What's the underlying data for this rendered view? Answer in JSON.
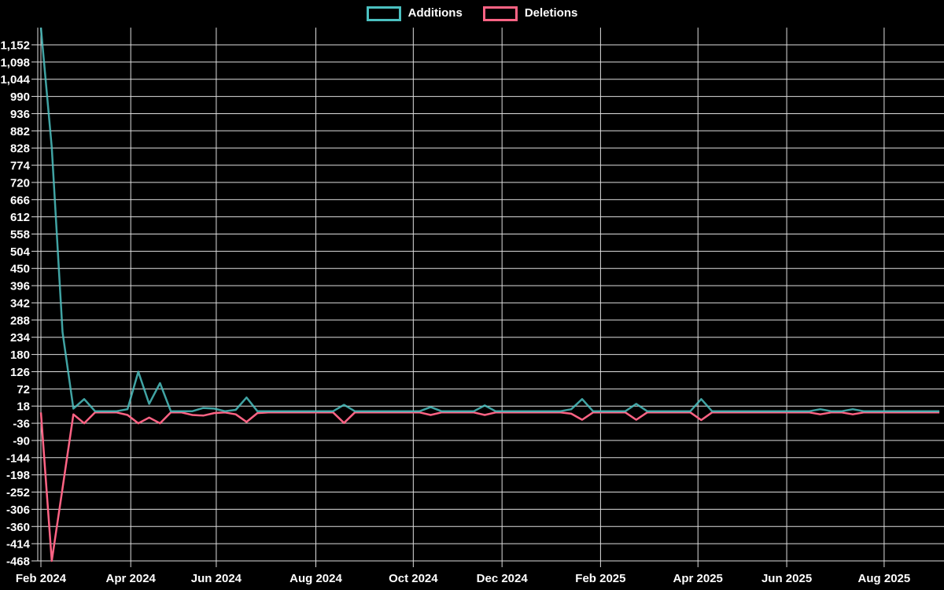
{
  "legend": {
    "items": [
      {
        "label": "Additions",
        "color": "#4bc0c0"
      },
      {
        "label": "Deletions",
        "color": "#ff6384"
      }
    ]
  },
  "chart_data": {
    "type": "line",
    "title": "",
    "xlabel": "",
    "ylabel": "",
    "background": "#000000",
    "grid": true,
    "grid_color": "#dedede",
    "text_color": "#ffffff",
    "legend_position": "top-center",
    "ylim": [
      -468,
      1206
    ],
    "y_tick_step": 54,
    "y_ticks": [
      {
        "value": 1152,
        "label": "1,152"
      },
      {
        "value": 1098,
        "label": "1,098"
      },
      {
        "value": 1044,
        "label": "1,044"
      },
      {
        "value": 990,
        "label": "990"
      },
      {
        "value": 936,
        "label": "936"
      },
      {
        "value": 882,
        "label": "882"
      },
      {
        "value": 828,
        "label": "828"
      },
      {
        "value": 774,
        "label": "774"
      },
      {
        "value": 720,
        "label": "720"
      },
      {
        "value": 666,
        "label": "666"
      },
      {
        "value": 612,
        "label": "612"
      },
      {
        "value": 558,
        "label": "558"
      },
      {
        "value": 504,
        "label": "504"
      },
      {
        "value": 450,
        "label": "450"
      },
      {
        "value": 396,
        "label": "396"
      },
      {
        "value": 342,
        "label": "342"
      },
      {
        "value": 288,
        "label": "288"
      },
      {
        "value": 234,
        "label": "234"
      },
      {
        "value": 180,
        "label": "180"
      },
      {
        "value": 126,
        "label": "126"
      },
      {
        "value": 72,
        "label": "72"
      },
      {
        "value": 18,
        "label": "18"
      },
      {
        "value": -36,
        "label": "-36"
      },
      {
        "value": -90,
        "label": "-90"
      },
      {
        "value": -144,
        "label": "-144"
      },
      {
        "value": -198,
        "label": "-198"
      },
      {
        "value": -252,
        "label": "-252"
      },
      {
        "value": -306,
        "label": "-306"
      },
      {
        "value": -360,
        "label": "-360"
      },
      {
        "value": -414,
        "label": "-414"
      },
      {
        "value": -468,
        "label": "-468"
      }
    ],
    "x_unit": "week",
    "x_range_weeks": [
      0,
      83
    ],
    "x_ticks": [
      {
        "week": 0,
        "label": "Feb 2024"
      },
      {
        "week": 8.3,
        "label": "Apr 2024"
      },
      {
        "week": 16.2,
        "label": "Jun 2024"
      },
      {
        "week": 25.4,
        "label": "Aug 2024"
      },
      {
        "week": 34.4,
        "label": "Oct 2024"
      },
      {
        "week": 42.6,
        "label": "Dec 2024"
      },
      {
        "week": 51.7,
        "label": "Feb 2025"
      },
      {
        "week": 60.7,
        "label": "Apr 2025"
      },
      {
        "week": 68.9,
        "label": "Jun 2025"
      },
      {
        "week": 77.9,
        "label": "Aug 2025"
      }
    ],
    "series": [
      {
        "name": "Additions",
        "color": "#4bc0c0",
        "values": [
          1206,
          830,
          250,
          10,
          40,
          2,
          2,
          2,
          8,
          126,
          25,
          90,
          2,
          2,
          2,
          12,
          10,
          2,
          6,
          45,
          2,
          2,
          2,
          2,
          2,
          2,
          2,
          2,
          22,
          2,
          2,
          2,
          2,
          2,
          2,
          2,
          15,
          2,
          2,
          2,
          2,
          20,
          2,
          2,
          2,
          2,
          2,
          2,
          2,
          8,
          40,
          2,
          2,
          2,
          2,
          25,
          2,
          2,
          2,
          2,
          2,
          40,
          2,
          2,
          2,
          2,
          2,
          2,
          2,
          2,
          2,
          2,
          8,
          2,
          2,
          8,
          2,
          2,
          2,
          2,
          2,
          2,
          2,
          2
        ]
      },
      {
        "name": "Deletions",
        "color": "#ff6384",
        "values": [
          -2,
          -468,
          -240,
          -8,
          -36,
          -2,
          -2,
          -2,
          -10,
          -36,
          -18,
          -36,
          -2,
          -2,
          -10,
          -12,
          -4,
          -2,
          -8,
          -32,
          -4,
          -2,
          -2,
          -2,
          -2,
          -2,
          -2,
          -2,
          -35,
          -2,
          -2,
          -2,
          -2,
          -2,
          -2,
          -2,
          -10,
          -2,
          -2,
          -2,
          -2,
          -10,
          -2,
          -2,
          -2,
          -2,
          -2,
          -2,
          -2,
          -6,
          -25,
          -2,
          -2,
          -2,
          -2,
          -25,
          -2,
          -2,
          -2,
          -2,
          -2,
          -26,
          -2,
          -2,
          -2,
          -2,
          -2,
          -2,
          -2,
          -2,
          -2,
          -2,
          -8,
          -2,
          -2,
          -8,
          -2,
          -2,
          -2,
          -2,
          -2,
          -2,
          -2,
          -2
        ]
      }
    ]
  }
}
